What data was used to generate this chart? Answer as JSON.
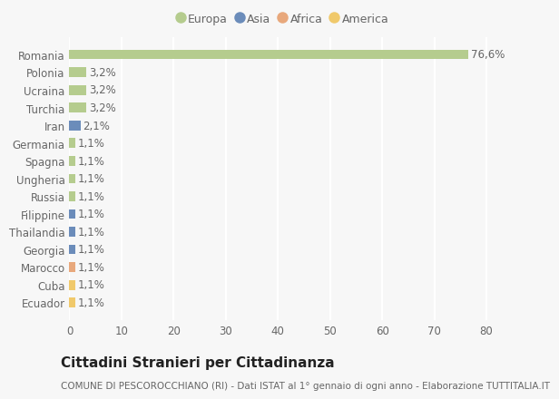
{
  "countries": [
    "Romania",
    "Polonia",
    "Ucraina",
    "Turchia",
    "Iran",
    "Germania",
    "Spagna",
    "Ungheria",
    "Russia",
    "Filippine",
    "Thailandia",
    "Georgia",
    "Marocco",
    "Cuba",
    "Ecuador"
  ],
  "values": [
    76.6,
    3.2,
    3.2,
    3.2,
    2.1,
    1.1,
    1.1,
    1.1,
    1.1,
    1.1,
    1.1,
    1.1,
    1.1,
    1.1,
    1.1
  ],
  "labels": [
    "76,6%",
    "3,2%",
    "3,2%",
    "3,2%",
    "2,1%",
    "1,1%",
    "1,1%",
    "1,1%",
    "1,1%",
    "1,1%",
    "1,1%",
    "1,1%",
    "1,1%",
    "1,1%",
    "1,1%"
  ],
  "continents": [
    "Europa",
    "Europa",
    "Europa",
    "Europa",
    "Asia",
    "Europa",
    "Europa",
    "Europa",
    "Europa",
    "Asia",
    "Asia",
    "Asia",
    "Africa",
    "America",
    "America"
  ],
  "colors": {
    "Europa": "#b5cc8e",
    "Asia": "#6b8cba",
    "Africa": "#e8a87c",
    "America": "#f0c96b"
  },
  "legend_order": [
    "Europa",
    "Asia",
    "Africa",
    "America"
  ],
  "legend_colors": {
    "Europa": "#b5cc8e",
    "Asia": "#6b8cba",
    "Africa": "#e8a87c",
    "America": "#f0c96b"
  },
  "xlim": [
    0,
    82
  ],
  "xticks": [
    0,
    10,
    20,
    30,
    40,
    50,
    60,
    70,
    80
  ],
  "title": "Cittadini Stranieri per Cittadinanza",
  "subtitle": "COMUNE DI PESCOROCCHIANO (RI) - Dati ISTAT al 1° gennaio di ogni anno - Elaborazione TUTTITALIA.IT",
  "background_color": "#f7f7f7",
  "bar_height": 0.55,
  "grid_color": "#ffffff",
  "text_color": "#666666",
  "label_fontsize": 8.5,
  "tick_fontsize": 8.5,
  "title_fontsize": 11,
  "subtitle_fontsize": 7.5
}
